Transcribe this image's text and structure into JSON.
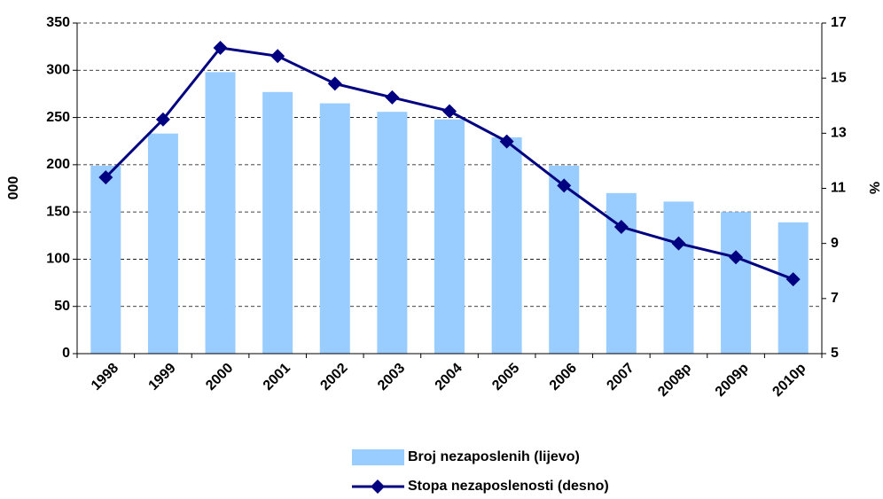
{
  "chart_data": {
    "type": "bar_line",
    "categories": [
      "1998",
      "1999",
      "2000",
      "2001",
      "2002",
      "2003",
      "2004",
      "2005",
      "2006",
      "2007",
      "2008p",
      "2009p",
      "2010p"
    ],
    "series": [
      {
        "name": "Broj nezaposlenih (lijevo)",
        "type": "bar",
        "axis": "y",
        "color": "#99ccff",
        "values": [
          199,
          233,
          298,
          277,
          265,
          256,
          248,
          229,
          199,
          170,
          161,
          150,
          139
        ]
      },
      {
        "name": "Stopa nezaposlenosti (desno)",
        "type": "line",
        "axis": "y2",
        "color": "#000080",
        "values": [
          11.4,
          13.5,
          16.1,
          15.8,
          14.8,
          14.3,
          13.8,
          12.7,
          11.1,
          9.6,
          9.0,
          8.5,
          7.7
        ]
      }
    ],
    "y_label": "000",
    "y2_label": "%",
    "ylim": [
      0,
      350
    ],
    "yticks": [
      0,
      50,
      100,
      150,
      200,
      250,
      300,
      350
    ],
    "y2lim": [
      5,
      17
    ],
    "y2ticks": [
      5,
      7,
      9,
      11,
      13,
      15,
      17
    ],
    "grid": true,
    "legend": "bottom"
  }
}
